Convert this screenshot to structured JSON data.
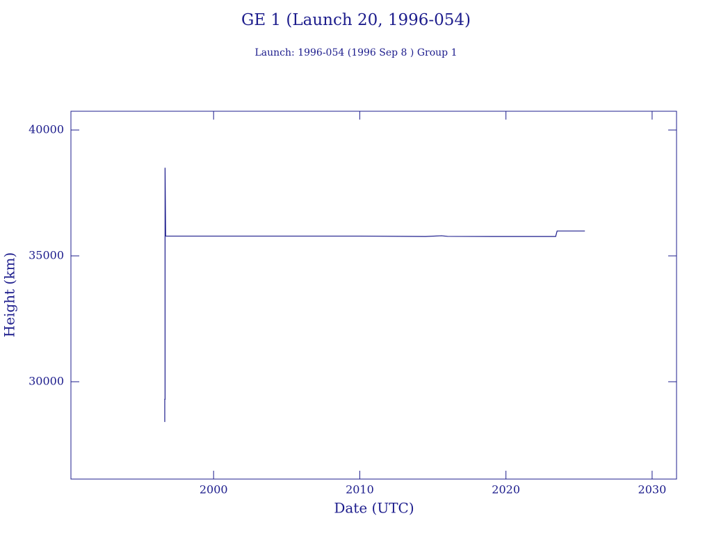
{
  "chart_data": {
    "type": "line",
    "title": "GE 1 (Launch 20, 1996-054)",
    "subtitle": "Launch: 1996-054  (1996 Sep  8 )  Group 1",
    "x_label": "Date (UTC)",
    "y_label": "Height (km)",
    "color": "#1c1c8c",
    "xlim": [
      1990.24,
      2031.67
    ],
    "ylim": [
      26133,
      40746
    ],
    "xticks": [
      2000,
      2010,
      2020,
      2030
    ],
    "yticks": [
      30000,
      35000,
      40000
    ],
    "x": [
      1996.66,
      1996.66,
      1996.68,
      1996.68,
      1996.72,
      2004.0,
      2010.0,
      2014.5,
      2015.6,
      2016.0,
      2019.0,
      2023.4,
      2023.5,
      2025.4
    ],
    "values": [
      28400,
      29300,
      29300,
      38500,
      35786,
      35786,
      35786,
      35770,
      35800,
      35775,
      35770,
      35770,
      35990,
      35990
    ]
  }
}
